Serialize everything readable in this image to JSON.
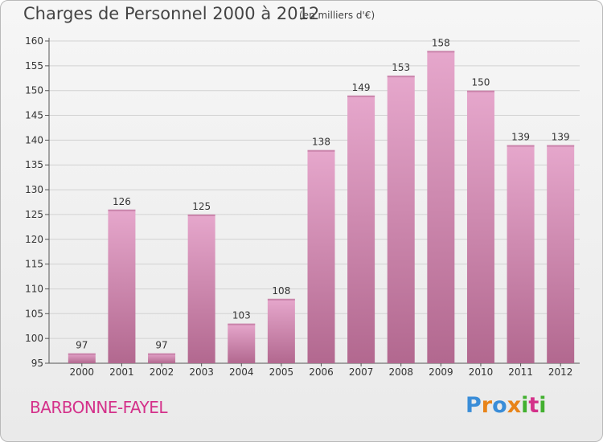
{
  "header": {
    "title": "Charges de Personnel 2000 à 2012",
    "subtitle": "(en milliers d'€)"
  },
  "footer": {
    "place": "BARBONNE-FAYEL",
    "logo_text": "Proxiti"
  },
  "colors": {
    "bar_light": "#e6a7cc",
    "bar_dark": "#b2688f",
    "place_text": "#d4318a",
    "grid": "#d2d2d2"
  },
  "chart_data": {
    "type": "bar",
    "title": "Charges de Personnel 2000 à 2012",
    "subtitle": "(en milliers d'€)",
    "categories": [
      "2000",
      "2001",
      "2002",
      "2003",
      "2004",
      "2005",
      "2006",
      "2007",
      "2008",
      "2009",
      "2010",
      "2011",
      "2012"
    ],
    "values": [
      97,
      126,
      97,
      125,
      103,
      108,
      138,
      149,
      153,
      158,
      150,
      139,
      139
    ],
    "ylim": [
      95,
      160
    ],
    "yticks": [
      95,
      100,
      105,
      110,
      115,
      120,
      125,
      130,
      135,
      140,
      145,
      150,
      155,
      160
    ],
    "grid": true,
    "xlabel": "",
    "ylabel": ""
  }
}
